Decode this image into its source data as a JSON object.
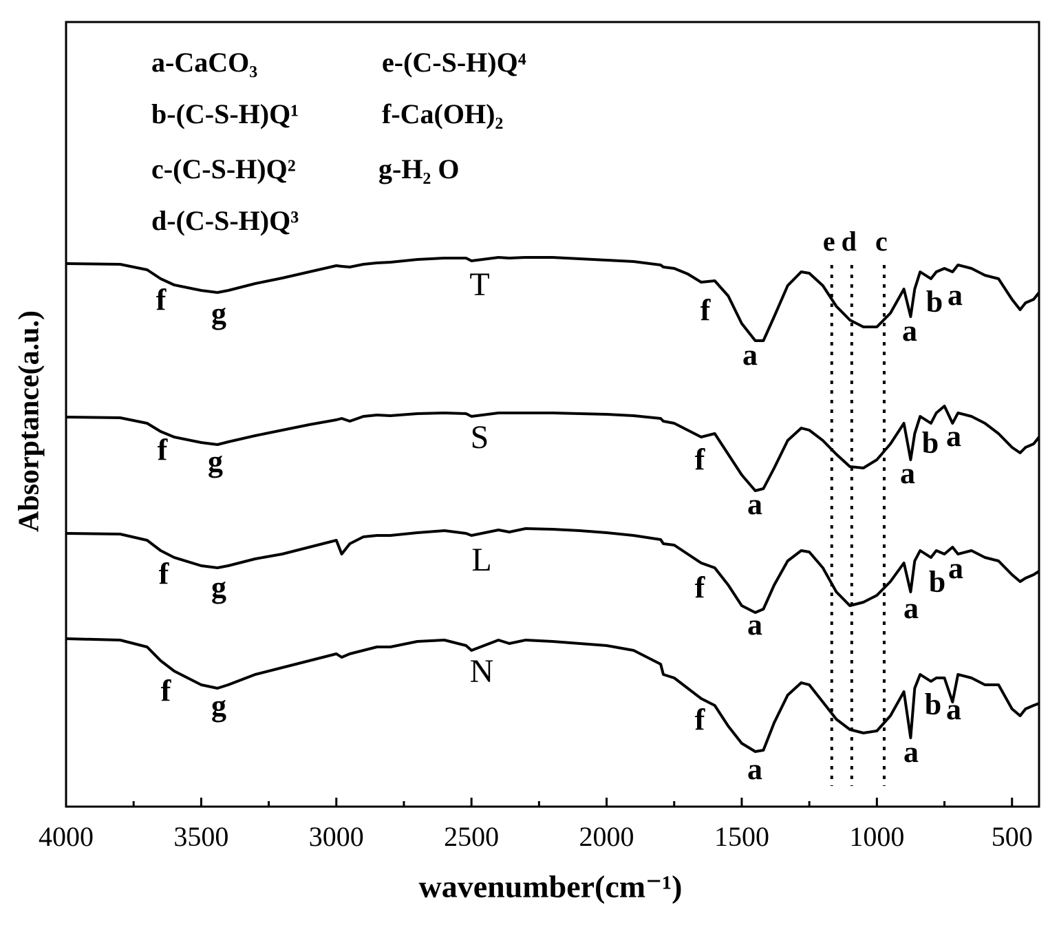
{
  "chart_data": {
    "type": "line",
    "x_label": "wavenumber(cm⁻¹)",
    "y_label": "Absorptance(a.u.)",
    "xlim": [
      4000,
      400
    ],
    "ylim": [
      0,
      114
    ],
    "xticks": [
      4000,
      3500,
      3000,
      2500,
      2000,
      1500,
      1000,
      500
    ],
    "xminorticks": [
      3750,
      3250,
      2750,
      2250,
      1750,
      1250,
      750
    ],
    "color": "#000000",
    "x": [
      4000,
      3800,
      3700,
      3650,
      3600,
      3500,
      3440,
      3400,
      3300,
      3200,
      3100,
      3000,
      2980,
      2950,
      2900,
      2850,
      2800,
      2700,
      2600,
      2520,
      2500,
      2400,
      2360,
      2300,
      2200,
      2100,
      2000,
      1900,
      1800,
      1790,
      1750,
      1700,
      1650,
      1600,
      1550,
      1500,
      1450,
      1420,
      1380,
      1330,
      1280,
      1250,
      1200,
      1150,
      1100,
      1050,
      1000,
      950,
      900,
      875,
      860,
      840,
      800,
      780,
      750,
      720,
      700,
      650,
      600,
      550,
      500,
      470,
      450,
      420,
      400
    ],
    "series": [
      {
        "name": "T",
        "values": [
          78.9,
          78.8,
          78.0,
          76.7,
          75.8,
          75.0,
          74.7,
          75.0,
          76.0,
          76.8,
          77.7,
          78.6,
          78.5,
          78.4,
          78.8,
          79.0,
          79.1,
          79.5,
          79.7,
          79.7,
          79.3,
          79.8,
          79.7,
          79.8,
          79.8,
          79.6,
          79.4,
          79.2,
          78.7,
          78.4,
          78.2,
          77.4,
          76.2,
          76.4,
          74.2,
          70.2,
          67.7,
          67.7,
          71.2,
          75.7,
          77.7,
          77.5,
          75.7,
          72.7,
          70.7,
          69.7,
          69.7,
          71.7,
          75.2,
          71.2,
          75.2,
          77.7,
          76.7,
          77.7,
          78.2,
          77.7,
          78.7,
          78.2,
          77.2,
          76.7,
          73.7,
          72.2,
          73.2,
          73.7,
          74.7
        ]
      },
      {
        "name": "S",
        "values": [
          56.6,
          56.5,
          55.7,
          54.5,
          53.7,
          52.9,
          52.6,
          53.0,
          53.9,
          54.7,
          55.5,
          56.2,
          56.4,
          56.0,
          56.7,
          56.9,
          56.8,
          57.1,
          57.2,
          57.1,
          56.7,
          57.2,
          57.2,
          57.2,
          57.2,
          57.1,
          57.0,
          56.8,
          56.4,
          56.0,
          55.7,
          54.7,
          53.7,
          54.2,
          51.2,
          48.2,
          45.9,
          46.2,
          49.2,
          53.2,
          55.0,
          54.7,
          53.2,
          51.2,
          49.4,
          49.2,
          50.4,
          52.7,
          55.7,
          50.4,
          54.2,
          56.7,
          55.7,
          57.2,
          58.2,
          55.7,
          57.2,
          56.7,
          55.7,
          54.2,
          52.2,
          51.4,
          52.2,
          52.7,
          53.7
        ]
      },
      {
        "name": "L",
        "values": [
          39.7,
          39.6,
          38.7,
          37.2,
          36.2,
          35.0,
          34.7,
          35.0,
          36.0,
          36.7,
          37.7,
          38.7,
          36.7,
          38.2,
          39.2,
          39.4,
          39.4,
          39.8,
          40.1,
          39.7,
          39.4,
          40.2,
          39.9,
          40.4,
          40.3,
          40.1,
          39.8,
          39.4,
          38.8,
          38.2,
          38.0,
          36.7,
          35.4,
          34.7,
          32.2,
          29.2,
          28.2,
          28.7,
          32.2,
          35.7,
          37.2,
          37.0,
          34.7,
          31.2,
          29.2,
          29.7,
          30.7,
          32.7,
          35.4,
          31.2,
          35.7,
          37.2,
          36.2,
          37.2,
          36.7,
          37.7,
          36.7,
          37.2,
          36.2,
          35.7,
          33.7,
          32.7,
          33.2,
          33.7,
          34.2
        ]
      },
      {
        "name": "N",
        "values": [
          24.4,
          24.2,
          23.2,
          21.2,
          19.7,
          17.7,
          17.2,
          17.7,
          19.2,
          20.2,
          21.2,
          22.2,
          21.7,
          22.2,
          22.7,
          23.2,
          23.2,
          24.0,
          24.2,
          23.4,
          22.7,
          24.2,
          23.7,
          24.2,
          24.0,
          23.7,
          23.4,
          22.7,
          20.7,
          19.2,
          18.7,
          17.2,
          15.7,
          14.7,
          11.7,
          9.2,
          8.0,
          8.2,
          12.2,
          16.2,
          18.0,
          17.7,
          15.2,
          12.7,
          11.2,
          10.7,
          11.0,
          13.2,
          16.7,
          10.0,
          17.2,
          19.2,
          18.2,
          18.7,
          18.7,
          15.2,
          19.2,
          18.7,
          17.7,
          17.7,
          14.2,
          13.2,
          14.2,
          14.7,
          15.0
        ]
      }
    ],
    "legend": [
      "a-CaCO₃",
      "b-(C-S-H)Q¹",
      "c-(C-S-H)Q²",
      "d-(C-S-H)Q³",
      "e-(C-S-H)Q⁴",
      "f-Ca(OH)₂",
      "g-H₂ O"
    ],
    "reference_lines": [
      {
        "label": "e",
        "x": 1167
      },
      {
        "label": "d",
        "x": 1093
      },
      {
        "label": "c",
        "x": 973
      }
    ],
    "annotations": [
      "f",
      "g",
      "f",
      "a",
      "a",
      "b",
      "a",
      "f",
      "g",
      "f",
      "a",
      "a",
      "b",
      "a",
      "f",
      "g",
      "f",
      "a",
      "a",
      "b",
      "a",
      "f",
      "g",
      "f",
      "a",
      "a",
      "b",
      "a"
    ]
  }
}
